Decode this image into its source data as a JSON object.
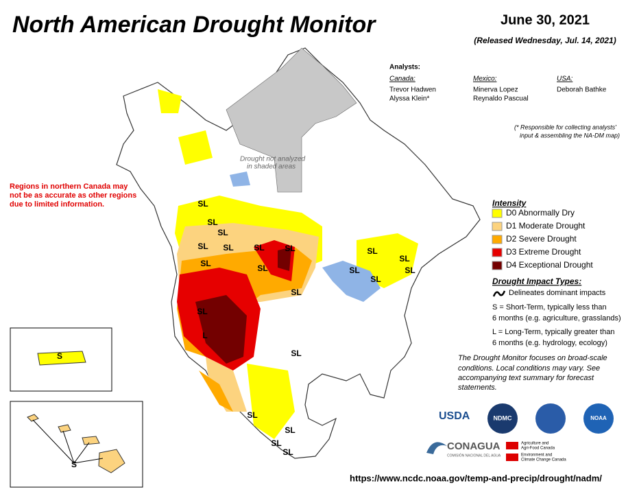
{
  "header": {
    "title": "North American Drought Monitor",
    "date": "June 30, 2021",
    "released": "(Released Wednesday, Jul. 14, 2021)"
  },
  "analysts": {
    "heading": "Analysts:",
    "canada": {
      "label": "Canada:",
      "names": [
        "Trevor Hadwen",
        "Alyssa Klein*"
      ]
    },
    "mexico": {
      "label": "Mexico:",
      "names": [
        "Minerva Lopez",
        "Reynaldo Pascual"
      ]
    },
    "usa": {
      "label": "USA:",
      "names": [
        "Deborah Bathke"
      ]
    },
    "note": [
      "(* Responsible for collecting analysts'",
      "input & assembling the NA-DM map)"
    ]
  },
  "map": {
    "not_analyzed": [
      "Drought not analyzed",
      "in shaded areas"
    ],
    "labels": [
      "SL",
      "SL",
      "SL",
      "SL",
      "SL",
      "SL",
      "SL",
      "SL",
      "SL",
      "SL",
      "SL",
      "SL",
      "SL",
      "SL",
      "SL",
      "SL",
      "SL",
      "SL",
      "SL",
      "SL",
      "SL",
      "S",
      "S",
      "L"
    ]
  },
  "red_note": [
    "Regions in northern Canada may",
    "not be as accurate as other regions",
    "due to limited information."
  ],
  "intensity": {
    "heading": "Intensity",
    "items": [
      {
        "label": "D0 Abnormally Dry",
        "color": "#ffff00"
      },
      {
        "label": "D1 Moderate Drought",
        "color": "#fcd37f"
      },
      {
        "label": "D2 Severe Drought",
        "color": "#ffaa00"
      },
      {
        "label": "D3 Extreme Drought",
        "color": "#e60000"
      },
      {
        "label": "D4 Exceptional Drought",
        "color": "#730000"
      }
    ]
  },
  "impact": {
    "heading": "Drought Impact Types:",
    "delineates": "Delineates dominant impacts",
    "short": [
      "S = Short-Term, typically less than",
      "6 months (e.g. agriculture, grasslands)"
    ],
    "long": [
      "L = Long-Term, typically greater than",
      "6 months (e.g. hydrology, ecology)"
    ]
  },
  "statement": [
    "The Drought Monitor focuses on broad-scale",
    "conditions. Local conditions may vary. See",
    "accompanying text summary for forecast",
    "statements."
  ],
  "logos": {
    "usda": "USDA",
    "ndmc": "NDMC",
    "noaa": "NOAA",
    "conagua": "CONAGUA",
    "conagua_sub": "COMISIÓN NACIONAL DEL AGUA",
    "aafc": [
      "Agriculture and",
      "Agri-Food Canada"
    ],
    "eccc": [
      "Environment and",
      "Climate Change Canada"
    ]
  },
  "url": "https://www.ncdc.noaa.gov/temp-and-precip/drought/nadm/"
}
